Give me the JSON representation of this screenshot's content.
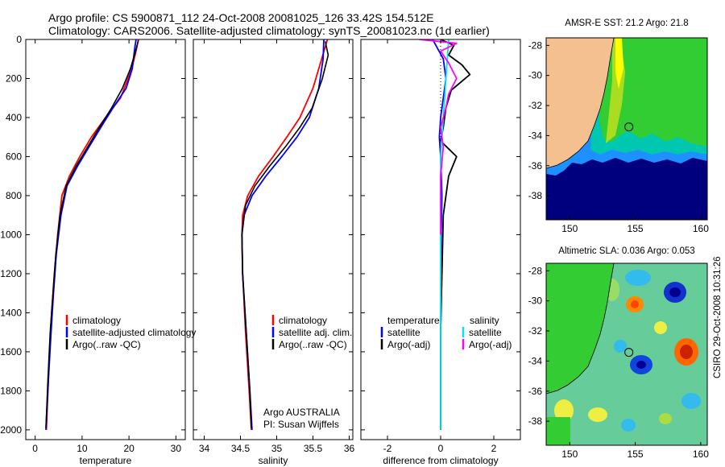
{
  "header": {
    "line1": "Argo profile: CS 5900871_112 24-Oct-2008 20081025_126 33.42S 154.512E",
    "line2": "Climatology: CARS2006. Satellite-adjusted climatology: synTS_20081023.nc (1d earlier)"
  },
  "colors": {
    "climatology": "#ff0000",
    "satellite_temp": "#0000ff",
    "satellite_sal": "#00e5ee",
    "argo_temp": "#000000",
    "argo_sal": "#ff00ff",
    "land": "#f5c08f",
    "deep_ocean": "#00007f"
  },
  "chart_data": [
    {
      "type": "line",
      "name": "temperature-profile",
      "xlabel": "temperature",
      "ylabel": "",
      "xlim": [
        -2,
        32
      ],
      "ylim": [
        2050,
        0
      ],
      "xticks": [
        0,
        10,
        20,
        30
      ],
      "yticks": [
        0,
        200,
        400,
        600,
        800,
        1000,
        1200,
        1400,
        1600,
        1800,
        2000
      ],
      "legend": [
        "climatology",
        "satellite-adjusted climatology",
        "Argo(..raw -QC)"
      ],
      "series": [
        {
          "name": "climatology",
          "color": "#ff0000",
          "x": [
            22.0,
            21.6,
            20.6,
            18.2,
            15.0,
            12.0,
            9.5,
            7.3,
            5.7,
            4.8,
            4.1,
            3.5,
            2.9,
            2.4
          ],
          "y": [
            0,
            50,
            150,
            300,
            400,
            500,
            600,
            700,
            800,
            1000,
            1200,
            1400,
            1700,
            2000
          ]
        },
        {
          "name": "satellite-adjusted climatology",
          "color": "#0000ff",
          "x": [
            21.5,
            21.2,
            20.7,
            19.4,
            16.6,
            14.0,
            11.5,
            9.0,
            6.8,
            5.5,
            4.5,
            3.9,
            3.4,
            2.8,
            2.3
          ],
          "y": [
            0,
            50,
            150,
            250,
            350,
            450,
            550,
            650,
            750,
            900,
            1100,
            1300,
            1500,
            1750,
            2000
          ]
        },
        {
          "name": "Argo(..raw -QC)",
          "color": "#000000",
          "x": [
            22.0,
            21.4,
            20.3,
            18.6,
            16.3,
            13.7,
            11.2,
            8.7,
            6.6,
            5.3,
            4.4,
            3.8,
            3.2,
            2.7,
            2.3
          ],
          "y": [
            5,
            60,
            150,
            250,
            350,
            450,
            550,
            650,
            750,
            900,
            1100,
            1300,
            1500,
            1750,
            1990
          ]
        }
      ]
    },
    {
      "type": "line",
      "name": "salinity-profile",
      "xlabel": "salinity",
      "xlim": [
        33.85,
        36.05
      ],
      "ylim": [
        2050,
        0
      ],
      "xticks": [
        34,
        34.5,
        35,
        35.5,
        36
      ],
      "legend": [
        "climatology",
        "satellite adj. clim.",
        "Argo(..raw -QC)"
      ],
      "annotation": [
        "Argo AUSTRALIA",
        "PI: Susan Wijffels"
      ],
      "series": [
        {
          "name": "climatology",
          "color": "#ff0000",
          "x": [
            35.7,
            35.62,
            35.5,
            35.32,
            35.14,
            34.95,
            34.75,
            34.6,
            34.53,
            34.52,
            34.53,
            34.57,
            34.62,
            34.65
          ],
          "y": [
            0,
            100,
            250,
            400,
            500,
            600,
            700,
            800,
            900,
            1000,
            1200,
            1500,
            1800,
            2000
          ]
        },
        {
          "name": "satellite adj. clim.",
          "color": "#0000ff",
          "x": [
            35.65,
            35.64,
            35.58,
            35.45,
            35.28,
            35.07,
            34.85,
            34.66,
            34.55,
            34.52,
            34.53,
            34.58,
            34.63,
            34.66
          ],
          "y": [
            0,
            100,
            250,
            400,
            500,
            600,
            700,
            800,
            900,
            1000,
            1200,
            1500,
            1800,
            2000
          ]
        },
        {
          "name": "Argo(..raw -QC)",
          "color": "#000000",
          "x": [
            35.67,
            35.71,
            35.63,
            35.49,
            35.32,
            35.12,
            34.9,
            34.7,
            34.57,
            34.52,
            34.53,
            34.58,
            34.63,
            34.65
          ],
          "y": [
            10,
            80,
            200,
            350,
            450,
            550,
            650,
            750,
            850,
            1000,
            1200,
            1500,
            1800,
            1990
          ]
        }
      ]
    },
    {
      "type": "line",
      "name": "difference-profile",
      "xlabel": "difference from climatology",
      "xlim": [
        -3,
        3
      ],
      "ylim": [
        2050,
        0
      ],
      "xticks": [
        -2,
        0,
        2
      ],
      "legend_left_title": "temperature",
      "legend_right_title": "salinity",
      "legend": [
        "satellite",
        "Argo(-adj)",
        "satellite",
        "Argo(-adj)"
      ],
      "series": [
        {
          "name": "temperature satellite",
          "color": "#0000ff",
          "x": [
            -0.3,
            0.1,
            0.2,
            0.1,
            0.0,
            -0.05,
            0.0,
            0.05,
            0.02,
            0.0,
            0.0
          ],
          "y": [
            0,
            100,
            200,
            300,
            400,
            500,
            600,
            800,
            1000,
            1500,
            2000
          ]
        },
        {
          "name": "temperature Argo(-adj)",
          "color": "#000000",
          "x": [
            0.0,
            0.5,
            0.3,
            0.8,
            1.1,
            0.4,
            0.2,
            0.1,
            0.0,
            0.3,
            0.6,
            0.3,
            0.1,
            0.0,
            0.0
          ],
          "y": [
            0,
            30,
            80,
            130,
            180,
            260,
            350,
            450,
            520,
            560,
            600,
            700,
            900,
            1500,
            2000
          ]
        },
        {
          "name": "salinity satellite",
          "color": "#00e5ee",
          "x": [
            0.3,
            0.25,
            0.2,
            0.15,
            0.1,
            0.05,
            0.0,
            0.0,
            0.0,
            0.0
          ],
          "y": [
            0,
            100,
            200,
            300,
            400,
            500,
            600,
            1000,
            1500,
            2000
          ]
        },
        {
          "name": "salinity Argo(-adj)",
          "color": "#ff00ff",
          "x": [
            -0.8,
            0.6,
            0.0,
            0.3,
            0.6,
            0.3,
            0.2,
            0.0,
            0.1,
            0.0,
            0.0
          ],
          "y": [
            0,
            20,
            60,
            120,
            200,
            280,
            350,
            450,
            550,
            700,
            1000
          ]
        }
      ]
    },
    {
      "type": "heatmap",
      "name": "sst-map",
      "title": "AMSR-E SST: 21.2 Argo: 21.8",
      "xlim": [
        148.2,
        160.5
      ],
      "ylim": [
        -39.6,
        -27.5
      ],
      "xticks": [
        150,
        155,
        160
      ],
      "yticks": [
        -28,
        -30,
        -32,
        -34,
        -36,
        -38
      ],
      "float_position": [
        154.512,
        -33.42
      ]
    },
    {
      "type": "heatmap",
      "name": "sla-map",
      "title": "Altimetric SLA: 0.036 Argo: 0.053",
      "xlim": [
        148.2,
        160.5
      ],
      "ylim": [
        -39.6,
        -27.5
      ],
      "xticks": [
        150,
        155,
        160
      ],
      "yticks": [
        -28,
        -30,
        -32,
        -34,
        -36,
        -38
      ],
      "float_position": [
        154.512,
        -33.42
      ]
    }
  ],
  "side_label": "CSIRO 29-Oct-2008 10:31:26"
}
